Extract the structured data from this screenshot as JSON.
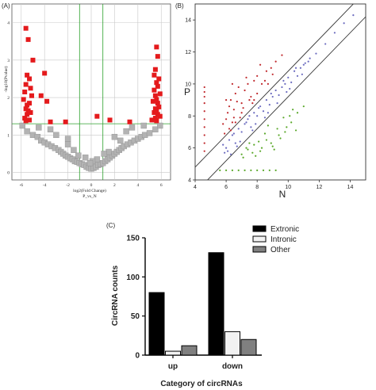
{
  "panels": {
    "a": {
      "letter": "(A)"
    },
    "b": {
      "letter": "(B)"
    },
    "c": {
      "letter": "(C)"
    }
  },
  "chart_data": [
    {
      "type": "scatter",
      "xlabel": "log2(Fold Change)",
      "xlabel2": "P_vs_N",
      "ylabel": "-log10(Pvalue)",
      "xlim": [
        -6.8,
        6.8
      ],
      "ylim": [
        -0.2,
        4.5
      ],
      "xticks": [
        -6,
        -4,
        -2,
        0,
        2,
        4,
        6
      ],
      "yticks": [
        0,
        1,
        2,
        3,
        4
      ],
      "grid": true,
      "thresholds": {
        "x": [
          -1,
          1
        ],
        "y": 1.3
      },
      "colors": {
        "significant": "#e41a1c",
        "nonsignificant": "#b3b3b3",
        "threshold": "#2ca02c"
      },
      "series": [
        {
          "name": "",
          "x": [
            -5.6,
            -5.4,
            -5.0,
            -4.0,
            -3.5,
            -5.5,
            -5.3,
            -5.6,
            -5.2,
            -5.7,
            -5.1,
            -5.8,
            -5.3,
            -5.5,
            -5.6,
            -5.4,
            -5.2,
            -5.5,
            -5.7,
            -5.3,
            -5.6,
            -4.3,
            -3.8,
            -2.2,
            0.5,
            1.6,
            3.3,
            5.6,
            5.7,
            5.5,
            5.4,
            5.8,
            5.6,
            5.7,
            5.4,
            5.9,
            5.5,
            5.6,
            5.3,
            5.7,
            5.8,
            5.5,
            5.6,
            5.4,
            5.7,
            5.9,
            5.5,
            5.2,
            5.6
          ],
          "y": [
            3.85,
            3.55,
            3.0,
            2.65,
            1.35,
            2.6,
            2.5,
            2.35,
            2.25,
            2.15,
            2.05,
            1.95,
            1.85,
            1.8,
            1.7,
            1.65,
            1.6,
            1.55,
            1.45,
            1.4,
            1.38,
            2.05,
            1.9,
            1.35,
            1.5,
            1.4,
            1.35,
            3.35,
            3.1,
            2.75,
            2.6,
            2.5,
            2.4,
            2.3,
            2.2,
            2.1,
            2.05,
            1.95,
            1.9,
            1.85,
            1.75,
            1.7,
            1.65,
            1.6,
            1.55,
            1.5,
            1.45,
            1.4,
            1.38
          ]
        },
        {
          "name": "",
          "x": [
            -5.9,
            -5.5,
            -5.0,
            -4.6,
            -4.3,
            -4.0,
            -3.7,
            -3.4,
            -3.1,
            -2.8,
            -2.6,
            -2.4,
            -2.2,
            -2.0,
            -1.8,
            -1.6,
            -1.4,
            -1.2,
            -1.0,
            -0.8,
            -0.6,
            -0.4,
            -0.2,
            0.0,
            0.2,
            0.4,
            0.6,
            0.8,
            1.0,
            1.2,
            1.4,
            1.6,
            1.8,
            2.0,
            2.2,
            2.4,
            2.6,
            2.8,
            3.1,
            3.4,
            3.7,
            4.0,
            4.3,
            4.6,
            5.0,
            5.5,
            5.9,
            -3.0,
            -2.0,
            -1.5,
            -0.5,
            0.5,
            1.5,
            2.5,
            3.0,
            1.1,
            -1.1,
            0.1,
            -0.1,
            2.0,
            -2.0,
            3.5,
            -3.5,
            4.5,
            -4.5
          ],
          "y": [
            1.25,
            1.1,
            1.0,
            0.95,
            0.85,
            0.8,
            0.75,
            0.7,
            0.65,
            0.6,
            0.55,
            0.5,
            0.45,
            0.42,
            0.38,
            0.35,
            0.3,
            0.28,
            0.25,
            0.22,
            0.2,
            0.15,
            0.12,
            0.1,
            0.12,
            0.15,
            0.2,
            0.22,
            0.25,
            0.3,
            0.35,
            0.4,
            0.45,
            0.5,
            0.55,
            0.6,
            0.65,
            0.7,
            0.75,
            0.8,
            0.85,
            0.9,
            0.95,
            1.0,
            1.05,
            1.15,
            1.25,
            1.0,
            0.75,
            0.6,
            0.4,
            0.35,
            0.55,
            0.85,
            1.1,
            0.5,
            0.45,
            0.3,
            0.25,
            0.95,
            0.9,
            1.2,
            1.15,
            1.25,
            1.2
          ]
        }
      ]
    },
    {
      "type": "scatter",
      "xlabel": "N",
      "ylabel": "P",
      "xlim": [
        4,
        15
      ],
      "ylim": [
        4,
        15
      ],
      "xticks": [
        4,
        6,
        8,
        10,
        12,
        14
      ],
      "yticks": [
        4,
        6,
        8,
        10,
        12,
        14
      ],
      "grid": false,
      "reference_lines": [
        {
          "slope": 1,
          "intercept": 0.8
        },
        {
          "slope": 1,
          "intercept": -0.8
        }
      ],
      "colors": {
        "up": "#c0282c",
        "unchanged": "#6b6bbf",
        "down": "#5aa82a",
        "line": "#333333"
      },
      "series": [
        {
          "name": "",
          "x": [
            4.6,
            4.6,
            4.6,
            4.6,
            4.6,
            4.6,
            4.6,
            4.6,
            4.6,
            4.6,
            5.8,
            6.0,
            6.1,
            6.2,
            6.3,
            6.4,
            6.5,
            6.6,
            6.8,
            7.0,
            7.2,
            7.4,
            7.6,
            7.8,
            8.0,
            8.3,
            8.6,
            8.9,
            9.2,
            9.6,
            6.0,
            6.5,
            7.0,
            7.5,
            8.0,
            8.5,
            9.0,
            6.2,
            6.9,
            7.7,
            6.4,
            6.7,
            7.3,
            8.2,
            5.9,
            6.3,
            6.6,
            7.1,
            7.8,
            8.7
          ],
          "y": [
            5.8,
            6.3,
            6.8,
            7.3,
            7.8,
            8.3,
            8.8,
            9.2,
            9.5,
            9.8,
            7.5,
            7.8,
            8.2,
            8.6,
            9.0,
            7.6,
            8.4,
            9.4,
            9.8,
            8.8,
            9.6,
            10.0,
            9.2,
            10.2,
            10.5,
            10.0,
            10.8,
            11.0,
            11.4,
            11.8,
            9.0,
            7.9,
            8.2,
            9.0,
            9.4,
            10.2,
            10.6,
            7.2,
            7.9,
            8.8,
            10.0,
            8.9,
            10.4,
            11.2,
            6.9,
            7.1,
            7.6,
            8.5,
            9.0,
            10.0
          ]
        },
        {
          "name": "",
          "x": [
            5.8,
            6.0,
            6.2,
            6.4,
            6.6,
            6.8,
            7.0,
            7.2,
            7.4,
            7.6,
            7.8,
            8.0,
            8.2,
            8.4,
            8.6,
            8.8,
            9.0,
            9.2,
            9.4,
            9.6,
            9.8,
            10.0,
            10.2,
            10.4,
            10.6,
            10.8,
            11.0,
            11.4,
            11.8,
            12.4,
            13.0,
            13.6,
            14.2,
            6.1,
            6.5,
            6.9,
            7.3,
            7.7,
            8.1,
            8.5,
            8.9,
            9.3,
            9.7,
            10.1,
            10.5,
            10.9,
            11.3,
            6.3,
            7.5,
            8.7,
            9.9,
            11.1,
            5.9,
            6.7,
            7.9
          ],
          "y": [
            6.2,
            6.0,
            6.5,
            6.8,
            6.3,
            7.2,
            7.0,
            7.5,
            7.8,
            7.3,
            8.2,
            8.0,
            8.6,
            8.3,
            9.0,
            8.7,
            9.2,
            9.6,
            9.3,
            9.8,
            10.0,
            10.4,
            10.1,
            10.8,
            10.5,
            11.0,
            11.2,
            11.6,
            11.9,
            12.5,
            13.2,
            13.8,
            14.3,
            5.8,
            6.9,
            6.4,
            7.6,
            7.1,
            8.5,
            7.9,
            9.4,
            8.8,
            10.2,
            9.7,
            11.0,
            10.6,
            11.4,
            5.6,
            8.0,
            8.2,
            9.5,
            11.3,
            5.7,
            6.1,
            7.5
          ]
        },
        {
          "name": "",
          "x": [
            5.6,
            6.0,
            6.4,
            6.8,
            7.2,
            7.6,
            8.0,
            8.4,
            8.8,
            9.2,
            7.0,
            7.4,
            7.8,
            8.2,
            8.6,
            9.0,
            9.4,
            9.8,
            10.2,
            10.6,
            11.0,
            7.3,
            7.7,
            8.1,
            8.5,
            8.9,
            9.3,
            9.7,
            10.1,
            10.5,
            7.1,
            7.5,
            7.9,
            8.3,
            8.7,
            9.1,
            9.5,
            9.9,
            10.3
          ],
          "y": [
            4.6,
            4.6,
            4.6,
            4.6,
            4.6,
            4.6,
            4.6,
            4.6,
            4.6,
            4.6,
            5.6,
            5.9,
            6.2,
            5.8,
            6.5,
            6.1,
            6.8,
            7.0,
            7.6,
            8.2,
            8.6,
            6.0,
            5.7,
            6.4,
            6.9,
            6.3,
            7.2,
            7.9,
            8.0,
            7.1,
            5.4,
            6.3,
            5.5,
            6.0,
            7.4,
            5.9,
            6.6,
            7.3,
            8.4
          ]
        }
      ]
    },
    {
      "type": "bar",
      "title": "",
      "xlabel": "Category of circRNAs",
      "ylabel": "CircRNA counts",
      "categories": [
        "up",
        "down"
      ],
      "ylim": [
        0,
        150
      ],
      "yticks": [
        0,
        50,
        100,
        150
      ],
      "legend": "top-right",
      "series": [
        {
          "name": "Extronic",
          "values": [
            80,
            131
          ],
          "color": "#000000"
        },
        {
          "name": "Intronic",
          "values": [
            5,
            30
          ],
          "color": "#f2f2f2"
        },
        {
          "name": "Other",
          "values": [
            12,
            20
          ],
          "color": "#808080"
        }
      ]
    }
  ]
}
